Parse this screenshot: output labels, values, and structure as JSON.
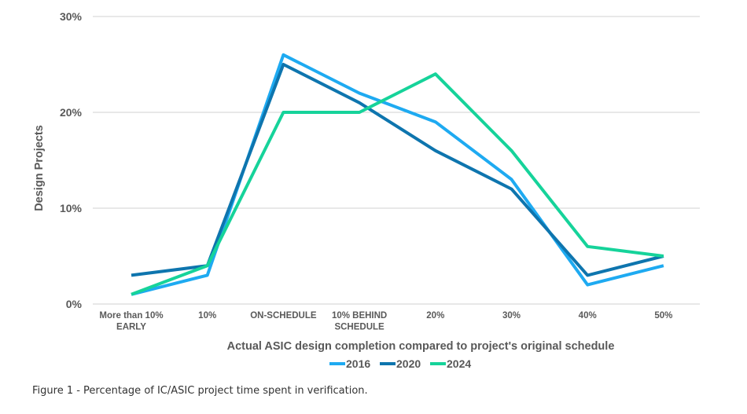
{
  "chart_data": {
    "type": "line",
    "categories": [
      [
        "More than 10%",
        "EARLY"
      ],
      [
        "10%"
      ],
      [
        "ON-SCHEDULE"
      ],
      [
        "10% BEHIND",
        "SCHEDULE"
      ],
      [
        "20%"
      ],
      [
        "30%"
      ],
      [
        "40%"
      ],
      [
        "50%"
      ]
    ],
    "series": [
      {
        "name": "2016",
        "color": "#1eaaf1",
        "values": [
          1,
          3,
          26,
          22,
          19,
          13,
          2,
          4
        ]
      },
      {
        "name": "2020",
        "color": "#0e75ae",
        "values": [
          3,
          4,
          25,
          21,
          16,
          12,
          3,
          5
        ]
      },
      {
        "name": "2024",
        "color": "#16d39a",
        "values": [
          1,
          4,
          20,
          20,
          24,
          16,
          6,
          5
        ]
      }
    ],
    "xlabel": "Actual ASIC design completion compared to project's original schedule",
    "ylabel": "Design Projects",
    "ylim": [
      0,
      30
    ],
    "yticks": [
      0,
      10,
      20,
      30
    ],
    "ytick_labels": [
      "0%",
      "10%",
      "20%",
      "30%"
    ],
    "grid": true,
    "legend_position": "bottom-center"
  },
  "caption": "Figure 1 - Percentage of IC/ASIC project time spent in verification."
}
